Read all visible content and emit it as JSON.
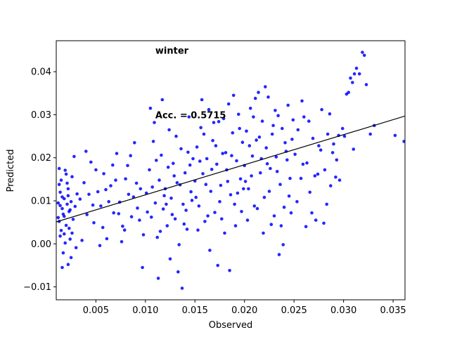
{
  "chart_data": {
    "type": "scatter",
    "title": "",
    "xlabel": "Observed",
    "ylabel": "Predicted",
    "xlim": [
      0.001,
      0.0362
    ],
    "ylim": [
      -0.013,
      0.0472
    ],
    "x_ticks": [
      0.005,
      0.01,
      0.015,
      0.02,
      0.025,
      0.03,
      0.035
    ],
    "x_tick_labels": [
      "0.005",
      "0.010",
      "0.015",
      "0.020",
      "0.025",
      "0.030",
      "0.035"
    ],
    "y_ticks": [
      -0.01,
      0.0,
      0.01,
      0.02,
      0.03,
      0.04
    ],
    "y_tick_labels": [
      "−0.01",
      "0.00",
      "0.01",
      "0.02",
      "0.03",
      "0.04"
    ],
    "grid": false,
    "annotations": [
      {
        "text": "winter",
        "x": 0.011,
        "y": 0.0442
      },
      {
        "text": "Acc. = 0.5715",
        "x": 0.011,
        "y": 0.0292
      }
    ],
    "series": [
      {
        "kind": "scatter",
        "color": "#0000ff",
        "points": [
          [
            0.0012,
            0.0095
          ],
          [
            0.0013,
            0.0052
          ],
          [
            0.0014,
            0.012
          ],
          [
            0.0015,
            0.0031
          ],
          [
            0.0015,
            0.0148
          ],
          [
            0.0016,
            0.0082
          ],
          [
            0.0017,
            -0.0021
          ],
          [
            0.0018,
            0.0105
          ],
          [
            0.0018,
            0.0064
          ],
          [
            0.0019,
            0.0171
          ],
          [
            0.002,
            0.0043
          ],
          [
            0.0021,
            0.0092
          ],
          [
            0.0022,
            -0.0048
          ],
          [
            0.0022,
            0.0128
          ],
          [
            0.0023,
            0.0075
          ],
          [
            0.0024,
            0.0011
          ],
          [
            0.0025,
            0.0098
          ],
          [
            0.0026,
            0.0156
          ],
          [
            0.0027,
            0.0057
          ],
          [
            0.0028,
            0.0203
          ],
          [
            0.0029,
            0.0087
          ],
          [
            0.003,
            -0.0009
          ],
          [
            0.0031,
            0.0116
          ],
          [
            0.0013,
            0.0138
          ],
          [
            0.0014,
            0.0018
          ],
          [
            0.0016,
            0.0109
          ],
          [
            0.0017,
            0.0069
          ],
          [
            0.0019,
            0.0002
          ],
          [
            0.0021,
            0.0141
          ],
          [
            0.0023,
            0.0036
          ],
          [
            0.0025,
            -0.0032
          ],
          [
            0.0014,
            0.0089
          ],
          [
            0.0018,
            0.0023
          ],
          [
            0.002,
            0.0162
          ],
          [
            0.0024,
            0.0079
          ],
          [
            0.0012,
            0.0061
          ],
          [
            0.0016,
            -0.0055
          ],
          [
            0.0022,
            0.0112
          ],
          [
            0.0026,
            0.0025
          ],
          [
            0.0013,
            0.0175
          ],
          [
            0.0034,
            0.0104
          ],
          [
            0.0038,
            0.0142
          ],
          [
            0.0041,
            0.0068
          ],
          [
            0.0045,
            0.019
          ],
          [
            0.0048,
            0.0049
          ],
          [
            0.0052,
            0.0121
          ],
          [
            0.0055,
            0.0088
          ],
          [
            0.0058,
            0.0163
          ],
          [
            0.0061,
            0.0012
          ],
          [
            0.0065,
            0.0135
          ],
          [
            0.0068,
            0.0072
          ],
          [
            0.0071,
            0.021
          ],
          [
            0.0074,
            0.0097
          ],
          [
            0.0077,
            0.0041
          ],
          [
            0.008,
            0.0151
          ],
          [
            0.0083,
            0.0115
          ],
          [
            0.0086,
            0.0063
          ],
          [
            0.0089,
            0.0235
          ],
          [
            0.0092,
            0.0083
          ],
          [
            0.0095,
            0.0128
          ],
          [
            0.0098,
            0.0021
          ],
          [
            0.0036,
            0.0008
          ],
          [
            0.0043,
            0.0115
          ],
          [
            0.005,
            0.0172
          ],
          [
            0.0057,
            0.0038
          ],
          [
            0.0063,
            0.0098
          ],
          [
            0.007,
            0.0148
          ],
          [
            0.0076,
            0.0005
          ],
          [
            0.0082,
            0.0182
          ],
          [
            0.0088,
            0.0109
          ],
          [
            0.0094,
            0.0055
          ],
          [
            0.004,
            0.0215
          ],
          [
            0.0047,
            0.009
          ],
          [
            0.0054,
            -0.0004
          ],
          [
            0.006,
            0.0126
          ],
          [
            0.0067,
            0.0183
          ],
          [
            0.0073,
            0.007
          ],
          [
            0.0079,
            0.0032
          ],
          [
            0.0085,
            0.0205
          ],
          [
            0.0091,
            0.0141
          ],
          [
            0.0097,
            -0.0055
          ],
          [
            0.0101,
            0.0118
          ],
          [
            0.0104,
            0.0172
          ],
          [
            0.0106,
            0.0062
          ],
          [
            0.0108,
            0.0238
          ],
          [
            0.011,
            0.0095
          ],
          [
            0.0112,
            0.0015
          ],
          [
            0.0114,
            0.0148
          ],
          [
            0.0116,
            0.0206
          ],
          [
            0.0118,
            0.0081
          ],
          [
            0.012,
            0.0128
          ],
          [
            0.0122,
            0.0042
          ],
          [
            0.0124,
            0.0265
          ],
          [
            0.0126,
            0.0106
          ],
          [
            0.0128,
            0.0187
          ],
          [
            0.013,
            0.0058
          ],
          [
            0.0132,
            0.0142
          ],
          [
            0.0134,
            -0.0002
          ],
          [
            0.0136,
            0.0221
          ],
          [
            0.0138,
            0.0092
          ],
          [
            0.014,
            0.0165
          ],
          [
            0.0142,
            0.0034
          ],
          [
            0.0144,
            0.0295
          ],
          [
            0.0146,
            0.0121
          ],
          [
            0.0148,
            0.0198
          ],
          [
            0.0102,
            0.0074
          ],
          [
            0.0107,
            0.0132
          ],
          [
            0.0111,
            0.0194
          ],
          [
            0.0115,
            0.0029
          ],
          [
            0.0119,
            0.0112
          ],
          [
            0.0123,
            0.0178
          ],
          [
            0.0127,
            0.0068
          ],
          [
            0.0131,
            0.025
          ],
          [
            0.0135,
            0.0137
          ],
          [
            0.0139,
            0.0046
          ],
          [
            0.0143,
            0.0213
          ],
          [
            0.0147,
            0.0101
          ],
          [
            0.0105,
            0.0315
          ],
          [
            0.0117,
            0.0335
          ],
          [
            0.0113,
            -0.008
          ],
          [
            0.0137,
            -0.0103
          ],
          [
            0.0125,
            -0.0035
          ],
          [
            0.0133,
            -0.0065
          ],
          [
            0.0109,
            0.0282
          ],
          [
            0.0121,
            0.0092
          ],
          [
            0.0129,
            0.0158
          ],
          [
            0.0141,
            0.0078
          ],
          [
            0.0145,
            0.0183
          ],
          [
            0.015,
            0.0146
          ],
          [
            0.0152,
            0.0225
          ],
          [
            0.0154,
            0.0088
          ],
          [
            0.0156,
            0.027
          ],
          [
            0.0158,
            0.0163
          ],
          [
            0.016,
            0.0052
          ],
          [
            0.0162,
            0.0198
          ],
          [
            0.0164,
            0.0312
          ],
          [
            0.0166,
            0.0122
          ],
          [
            0.0168,
            0.024
          ],
          [
            0.017,
            0.0073
          ],
          [
            0.0172,
            0.0185
          ],
          [
            0.0174,
            0.0284
          ],
          [
            0.0176,
            0.0136
          ],
          [
            0.0178,
            0.021
          ],
          [
            0.018,
            0.0025
          ],
          [
            0.0182,
            0.0172
          ],
          [
            0.0184,
            0.0325
          ],
          [
            0.0186,
            0.0114
          ],
          [
            0.0188,
            0.0258
          ],
          [
            0.019,
            0.0092
          ],
          [
            0.0192,
            0.0193
          ],
          [
            0.0194,
            0.0301
          ],
          [
            0.0196,
            0.0151
          ],
          [
            0.0198,
            0.0236
          ],
          [
            0.0151,
            0.0108
          ],
          [
            0.0155,
            0.0192
          ],
          [
            0.0159,
            0.0255
          ],
          [
            0.0163,
            0.0065
          ],
          [
            0.0167,
            0.0173
          ],
          [
            0.0171,
            0.0228
          ],
          [
            0.0175,
            0.0098
          ],
          [
            0.0179,
            0.0291
          ],
          [
            0.0183,
            0.0145
          ],
          [
            0.0187,
            0.0205
          ],
          [
            0.0191,
            0.0042
          ],
          [
            0.0195,
            0.0268
          ],
          [
            0.0199,
            0.0128
          ],
          [
            0.0157,
            0.0335
          ],
          [
            0.0173,
            -0.005
          ],
          [
            0.0185,
            -0.0062
          ],
          [
            0.0189,
            0.0345
          ],
          [
            0.0165,
            -0.0015
          ],
          [
            0.0177,
            0.0058
          ],
          [
            0.0193,
            0.0118
          ],
          [
            0.0197,
            0.0075
          ],
          [
            0.0153,
            0.0032
          ],
          [
            0.0161,
            0.0138
          ],
          [
            0.0169,
            0.0282
          ],
          [
            0.0181,
            0.0212
          ],
          [
            0.02,
            0.0182
          ],
          [
            0.0202,
            0.0262
          ],
          [
            0.0204,
            0.0128
          ],
          [
            0.0206,
            0.0315
          ],
          [
            0.0208,
            0.0204
          ],
          [
            0.021,
            0.0088
          ],
          [
            0.0212,
            0.0241
          ],
          [
            0.0214,
            0.0352
          ],
          [
            0.0216,
            0.0165
          ],
          [
            0.0218,
            0.0285
          ],
          [
            0.022,
            0.0108
          ],
          [
            0.0222,
            0.0223
          ],
          [
            0.0224,
            0.0341
          ],
          [
            0.0226,
            0.0175
          ],
          [
            0.0228,
            0.0255
          ],
          [
            0.023,
            0.0065
          ],
          [
            0.0232,
            0.0202
          ],
          [
            0.0234,
            0.0298
          ],
          [
            0.0236,
            0.0138
          ],
          [
            0.0238,
            0.0268
          ],
          [
            0.024,
            0.0085
          ],
          [
            0.0242,
            0.0215
          ],
          [
            0.0244,
            0.0322
          ],
          [
            0.0246,
            0.0152
          ],
          [
            0.0248,
            0.0243
          ],
          [
            0.0201,
            0.0145
          ],
          [
            0.0205,
            0.0228
          ],
          [
            0.0209,
            0.0295
          ],
          [
            0.0213,
            0.0082
          ],
          [
            0.0217,
            0.0198
          ],
          [
            0.0221,
            0.0365
          ],
          [
            0.0225,
            0.0122
          ],
          [
            0.0229,
            0.0275
          ],
          [
            0.0233,
            0.0168
          ],
          [
            0.0237,
            0.0042
          ],
          [
            0.0241,
            0.0235
          ],
          [
            0.0245,
            0.0111
          ],
          [
            0.0249,
            0.0288
          ],
          [
            0.0203,
            0.0055
          ],
          [
            0.0211,
            0.0338
          ],
          [
            0.0219,
            0.0025
          ],
          [
            0.0227,
            0.0045
          ],
          [
            0.0235,
            -0.0025
          ],
          [
            0.0239,
            -0.0002
          ],
          [
            0.0207,
            0.0158
          ],
          [
            0.0215,
            0.0248
          ],
          [
            0.0223,
            0.0186
          ],
          [
            0.0231,
            0.031
          ],
          [
            0.0243,
            0.0195
          ],
          [
            0.0247,
            0.0072
          ],
          [
            0.0251,
            0.0208
          ],
          [
            0.0254,
            0.0265
          ],
          [
            0.0257,
            0.0152
          ],
          [
            0.026,
            0.0295
          ],
          [
            0.0263,
            0.0188
          ],
          [
            0.0266,
            0.012
          ],
          [
            0.0269,
            0.0245
          ],
          [
            0.0272,
            0.0055
          ],
          [
            0.0275,
            0.0228
          ],
          [
            0.0278,
            0.0312
          ],
          [
            0.0281,
            0.0172
          ],
          [
            0.0284,
            0.0255
          ],
          [
            0.0287,
            0.0135
          ],
          [
            0.029,
            0.0232
          ],
          [
            0.0293,
            0.0195
          ],
          [
            0.0296,
            0.0148
          ],
          [
            0.0299,
            0.0268
          ],
          [
            0.0253,
            0.0098
          ],
          [
            0.0259,
            0.0185
          ],
          [
            0.0265,
            0.0285
          ],
          [
            0.0271,
            0.0158
          ],
          [
            0.0277,
            0.0218
          ],
          [
            0.0283,
            0.0092
          ],
          [
            0.0289,
            0.0212
          ],
          [
            0.0295,
            0.0252
          ],
          [
            0.0262,
            0.004
          ],
          [
            0.0268,
            0.0072
          ],
          [
            0.028,
            0.0048
          ],
          [
            0.0274,
            0.0162
          ],
          [
            0.0286,
            0.0302
          ],
          [
            0.0258,
            0.0332
          ],
          [
            0.0292,
            0.0155
          ],
          [
            0.0303,
            0.0348
          ],
          [
            0.0305,
            0.0352
          ],
          [
            0.0307,
            0.0385
          ],
          [
            0.0309,
            0.0375
          ],
          [
            0.0311,
            0.0395
          ],
          [
            0.0313,
            0.0408
          ],
          [
            0.0316,
            0.0395
          ],
          [
            0.0319,
            0.0445
          ],
          [
            0.0321,
            0.0438
          ],
          [
            0.0323,
            0.037
          ],
          [
            0.0327,
            0.0255
          ],
          [
            0.0331,
            0.0275
          ],
          [
            0.0301,
            0.025
          ],
          [
            0.031,
            0.022
          ],
          [
            0.0352,
            0.0252
          ],
          [
            0.0361,
            0.0238
          ]
        ]
      },
      {
        "kind": "line",
        "color": "#000000",
        "x": [
          0.001,
          0.0362
        ],
        "y": [
          0.0051,
          0.0297
        ]
      }
    ]
  }
}
